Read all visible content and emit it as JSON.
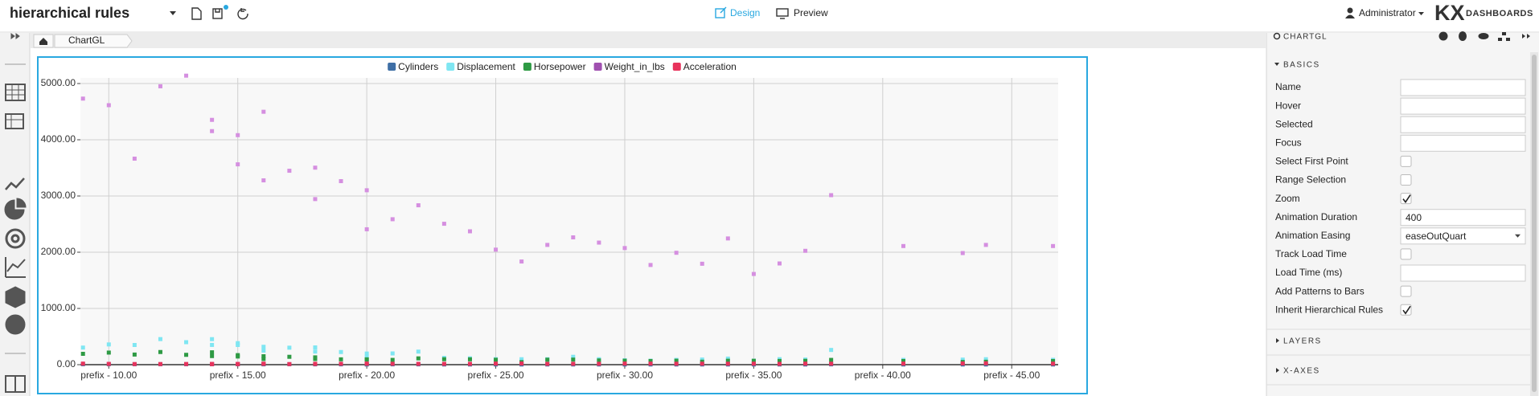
{
  "header": {
    "title": "hierarchical rules",
    "modes": [
      "Design",
      "Preview"
    ],
    "user": "Administrator",
    "logo": "KX",
    "brand": "DASHBOARDS"
  },
  "breadcrumb": {
    "items": [
      "ChartGL"
    ]
  },
  "chart_data": {
    "type": "scatter",
    "x": [
      9,
      10,
      11,
      12,
      13,
      14,
      14,
      15,
      15,
      16,
      16,
      17,
      18,
      18,
      19,
      20,
      20,
      21,
      22,
      23,
      24,
      25,
      26,
      27,
      28,
      29,
      30,
      31,
      32,
      33,
      34,
      35,
      36,
      37,
      38,
      40.8,
      43.1,
      44,
      46.6
    ],
    "series": [
      {
        "name": "Cylinders",
        "color": "#3f6fa6",
        "values": [
          8,
          8,
          8,
          8,
          8,
          8,
          8,
          8,
          8,
          8,
          6,
          8,
          6,
          8,
          6,
          6,
          4,
          6,
          6,
          4,
          4,
          4,
          4,
          4,
          4,
          4,
          4,
          4,
          4,
          4,
          4,
          4,
          4,
          4,
          6,
          4,
          4,
          4,
          4
        ]
      },
      {
        "name": "Displacement",
        "color": "#7fe6f2",
        "values": [
          304,
          360,
          350,
          455,
          400,
          454,
          351,
          383,
          350,
          318,
          250,
          302,
          232,
          307,
          225,
          198,
          140,
          200,
          232,
          120,
          113,
          98,
          97,
          97,
          140,
          97,
          79,
          71,
          85,
          91,
          108,
          72,
          98,
          91,
          262,
          85,
          90,
          97,
          86
        ]
      },
      {
        "name": "Horsepower",
        "color": "#2e9a44",
        "values": [
          193,
          215,
          180,
          225,
          175,
          220,
          153,
          170,
          145,
          150,
          100,
          140,
          100,
          130,
          95,
          95,
          90,
          85,
          112,
          97,
          95,
          87,
          46,
          88,
          90,
          75,
          70,
          65,
          70,
          53,
          70,
          69,
          66,
          68,
          85,
          65,
          48,
          52,
          65
        ]
      },
      {
        "name": "Weight_in_lbs",
        "color": "#d58fe0",
        "legend_color": "#a050b0",
        "values": [
          4732,
          4615,
          3664,
          4951,
          5140,
          4354,
          4154,
          3563,
          4082,
          4498,
          3278,
          3449,
          2945,
          3504,
          3264,
          3102,
          2408,
          2587,
          2835,
          2506,
          2372,
          2046,
          1835,
          2130,
          2264,
          2171,
          2074,
          1773,
          1990,
          1795,
          2245,
          1613,
          1800,
          2025,
          3015,
          2110,
          1985,
          2130,
          2110
        ]
      },
      {
        "name": "Acceleration",
        "color": "#e8335c",
        "values": [
          18.5,
          14,
          11,
          11,
          12,
          9,
          13.5,
          10,
          13,
          14.5,
          18,
          10.5,
          16,
          12,
          16,
          16.5,
          19.5,
          16,
          14.7,
          14.5,
          15,
          19,
          20.5,
          14.5,
          15.5,
          16,
          19.5,
          19,
          17,
          17.4,
          16.9,
          18,
          14.4,
          18.2,
          17,
          19.2,
          21.5,
          24.6,
          17.9
        ]
      }
    ],
    "xlim": [
      8.9,
      46.8
    ],
    "ylim": [
      0,
      5100
    ],
    "xticks": [
      {
        "value": 10,
        "label": "prefix - 10.00"
      },
      {
        "value": 15,
        "label": "prefix - 15.00"
      },
      {
        "value": 20,
        "label": "prefix - 20.00"
      },
      {
        "value": 25,
        "label": "prefix - 25.00"
      },
      {
        "value": 30,
        "label": "prefix - 30.00"
      },
      {
        "value": 35,
        "label": "prefix - 35.00"
      },
      {
        "value": 40,
        "label": "prefix - 40.00"
      },
      {
        "value": 45,
        "label": "prefix - 45.00"
      }
    ],
    "yticks": [
      {
        "value": 0,
        "label": "0.00"
      },
      {
        "value": 1000,
        "label": "1000.00"
      },
      {
        "value": 2000,
        "label": "2000.00"
      },
      {
        "value": 3000,
        "label": "3000.00"
      },
      {
        "value": 4000,
        "label": "4000.00"
      },
      {
        "value": 5000,
        "label": "5000.00"
      }
    ],
    "grid": true,
    "legend": "top"
  },
  "panel": {
    "title": "CHARTGL",
    "sections": [
      "BASICS",
      "LAYERS",
      "X-AXES"
    ],
    "fields": [
      {
        "label": "Name",
        "kind": "text"
      },
      {
        "label": "Hover",
        "kind": "text"
      },
      {
        "label": "Selected",
        "kind": "text"
      },
      {
        "label": "Focus",
        "kind": "text"
      },
      {
        "label": "Select First Point",
        "kind": "checkbox",
        "checked": false
      },
      {
        "label": "Range Selection",
        "kind": "checkbox",
        "checked": false
      },
      {
        "label": "Zoom",
        "kind": "checkbox",
        "checked": true
      },
      {
        "label": "Animation Duration",
        "kind": "text",
        "value": 400
      },
      {
        "label": "Animation Easing",
        "kind": "select",
        "value": "easeOutQuart"
      },
      {
        "label": "Track Load Time",
        "kind": "checkbox",
        "checked": false
      },
      {
        "label": "Load Time (ms)",
        "kind": "text"
      },
      {
        "label": "Add Patterns to Bars",
        "kind": "checkbox",
        "checked": false
      },
      {
        "label": "Inherit Hierarchical Rules",
        "kind": "checkbox",
        "checked": true
      }
    ]
  }
}
